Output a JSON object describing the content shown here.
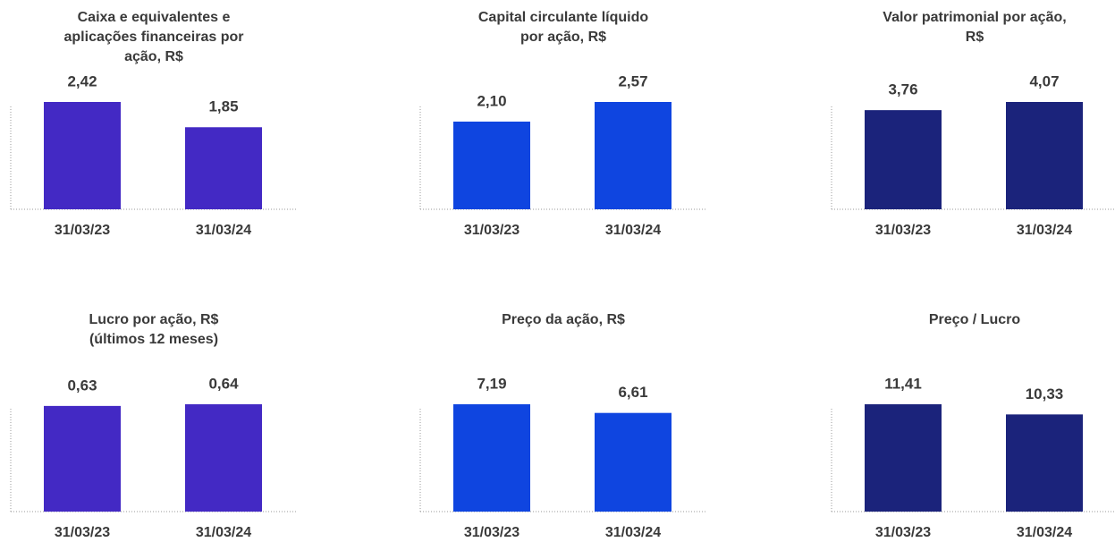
{
  "chart_data": [
    {
      "type": "bar",
      "title": [
        "Caixa e equivalentes e",
        "aplicações financeiras por",
        "ação, R$"
      ],
      "categories": [
        "31/03/23",
        "31/03/24"
      ],
      "values": [
        2.42,
        1.85
      ],
      "value_labels": [
        "2,42",
        "1,85"
      ],
      "color": "#4329c4"
    },
    {
      "type": "bar",
      "title": [
        "Capital circulante líquido",
        "por ação, R$"
      ],
      "categories": [
        "31/03/23",
        "31/03/24"
      ],
      "values": [
        2.1,
        2.57
      ],
      "value_labels": [
        "2,10",
        "2,57"
      ],
      "color": "#0f45e0"
    },
    {
      "type": "bar",
      "title": [
        "Valor patrimonial por ação,",
        "R$"
      ],
      "categories": [
        "31/03/23",
        "31/03/24"
      ],
      "values": [
        3.76,
        4.07
      ],
      "value_labels": [
        "3,76",
        "4,07"
      ],
      "color": "#1b237b"
    },
    {
      "type": "bar",
      "title": [
        "Lucro por ação, R$",
        "(últimos 12 meses)"
      ],
      "categories": [
        "31/03/23",
        "31/03/24"
      ],
      "values": [
        0.63,
        0.64
      ],
      "value_labels": [
        "0,63",
        "0,64"
      ],
      "color": "#4329c4"
    },
    {
      "type": "bar",
      "title": [
        "Preço da ação, R$"
      ],
      "categories": [
        "31/03/23",
        "31/03/24"
      ],
      "values": [
        7.19,
        6.61
      ],
      "value_labels": [
        "7,19",
        "6,61"
      ],
      "color": "#0f45e0"
    },
    {
      "type": "bar",
      "title": [
        "Preço / Lucro"
      ],
      "categories": [
        "31/03/23",
        "31/03/24"
      ],
      "values": [
        11.41,
        10.33
      ],
      "value_labels": [
        "11,41",
        "10,33"
      ],
      "color": "#1b237b"
    }
  ]
}
